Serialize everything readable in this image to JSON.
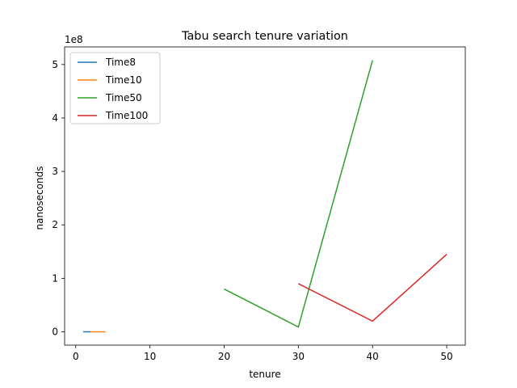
{
  "chart_data": {
    "type": "line",
    "title": "Tabu search tenure variation",
    "xlabel": "tenure",
    "ylabel": "nanoseconds",
    "y_offset_label": "1e8",
    "xlim": [
      -1.5,
      52.5
    ],
    "ylim": [
      -25000000,
      533000000
    ],
    "xticks": [
      0,
      10,
      20,
      30,
      40,
      50
    ],
    "xtick_labels": [
      "0",
      "10",
      "20",
      "30",
      "40",
      "50"
    ],
    "yticks": [
      0,
      100000000,
      200000000,
      300000000,
      400000000,
      500000000
    ],
    "ytick_labels": [
      "0",
      "1",
      "2",
      "3",
      "4",
      "5"
    ],
    "grid": false,
    "legend_position": "upper-left",
    "series": [
      {
        "name": "Time8",
        "color": "#1f77b4",
        "x": [
          1,
          2
        ],
        "y": [
          0,
          0
        ]
      },
      {
        "name": "Time10",
        "color": "#ff7f0e",
        "x": [
          2,
          4
        ],
        "y": [
          0,
          0
        ]
      },
      {
        "name": "Time50",
        "color": "#2ca02c",
        "x": [
          20,
          30,
          40
        ],
        "y": [
          80000000,
          9000000,
          508000000
        ]
      },
      {
        "name": "Time100",
        "color": "#d62728",
        "x": [
          30,
          40,
          50
        ],
        "y": [
          90000000,
          20000000,
          145000000
        ]
      }
    ]
  }
}
